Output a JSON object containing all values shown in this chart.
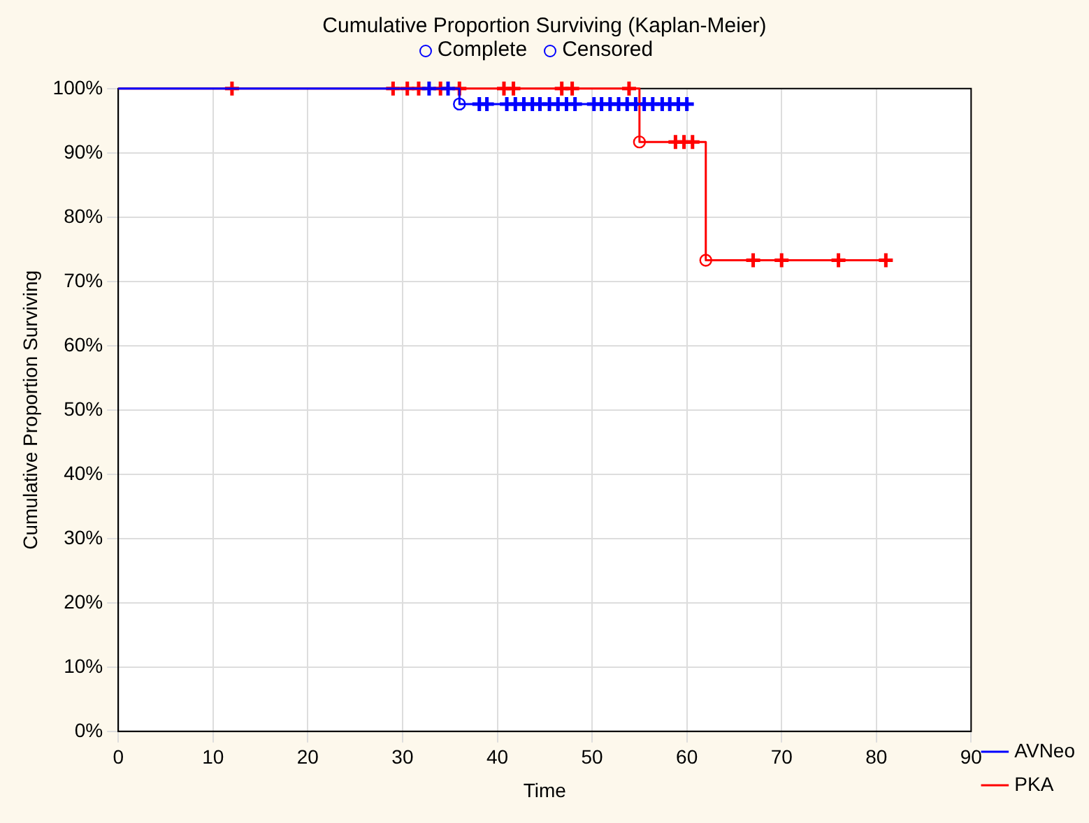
{
  "chart_data": {
    "type": "step",
    "title": "Cumulative Proportion Surviving (Kaplan-Meier)",
    "xlabel": "Time",
    "ylabel": "Cumulative Proportion Surviving",
    "annotations": [
      "Complete",
      "Censored"
    ],
    "xlim": [
      0,
      90
    ],
    "xticks": [
      0,
      10,
      20,
      30,
      40,
      50,
      60,
      70,
      80,
      90
    ],
    "ylim": [
      0,
      100
    ],
    "yticks": [
      {
        "value": 0,
        "label": "0%"
      },
      {
        "value": 10,
        "label": "10%"
      },
      {
        "value": 20,
        "label": "20%"
      },
      {
        "value": 30,
        "label": "30%"
      },
      {
        "value": 40,
        "label": "40%"
      },
      {
        "value": 50,
        "label": "50%"
      },
      {
        "value": 60,
        "label": "60%"
      },
      {
        "value": 70,
        "label": "70%"
      },
      {
        "value": 80,
        "label": "80%"
      },
      {
        "value": 90,
        "label": "90%"
      },
      {
        "value": 100,
        "label": "100%"
      }
    ],
    "grid": true,
    "legend": "bottom right",
    "line_style": "solid",
    "series": [
      {
        "name": "AVNeo",
        "color": "#0000ff",
        "marker": "none",
        "x": [
          0,
          36,
          60
        ],
        "values": [
          100,
          97.6,
          97.6
        ]
      },
      {
        "name": "PKA",
        "color": "#ff0000",
        "marker": "none",
        "x": [
          0,
          55,
          62,
          81
        ],
        "values": [
          100,
          91.7,
          73.3,
          73.3
        ]
      },
      {
        "type": "scatter",
        "color": "#0000ff",
        "marker": "cross",
        "x": [
          32.8,
          34.8,
          38.1,
          38.9,
          41,
          41.9,
          42.8,
          43.7,
          44.5,
          45.5,
          46.4,
          47.3,
          48.2,
          50.2,
          51,
          51.9,
          52.8,
          53.7,
          54.6,
          55.5,
          56.4,
          57.4,
          58.2,
          59.1,
          60
        ],
        "values": [
          100,
          100,
          97.6,
          97.6,
          97.6,
          97.6,
          97.6,
          97.6,
          97.6,
          97.6,
          97.6,
          97.6,
          97.6,
          97.6,
          97.6,
          97.6,
          97.6,
          97.6,
          97.6,
          97.6,
          97.6,
          97.6,
          97.6,
          97.6,
          97.6
        ]
      },
      {
        "type": "scatter",
        "color": "#ff0000",
        "marker": "cross",
        "x": [
          12,
          29,
          30.5,
          31.7,
          34,
          36,
          40.7,
          41.7,
          46.8,
          47.9,
          53.9,
          58.8,
          59.7,
          60.6,
          67,
          70,
          76,
          81
        ],
        "values": [
          100,
          100,
          100,
          100,
          100,
          100,
          100,
          100,
          100,
          100,
          100,
          91.7,
          91.7,
          91.7,
          73.3,
          73.3,
          73.3,
          73.3
        ]
      },
      {
        "type": "scatter",
        "color": "#0000ff",
        "marker": "circle",
        "x": [
          36
        ],
        "values": [
          97.6
        ]
      },
      {
        "type": "scatter",
        "color": "#ff0000",
        "marker": "circle",
        "x": [
          55,
          62
        ],
        "values": [
          91.7,
          73.3
        ]
      }
    ]
  }
}
